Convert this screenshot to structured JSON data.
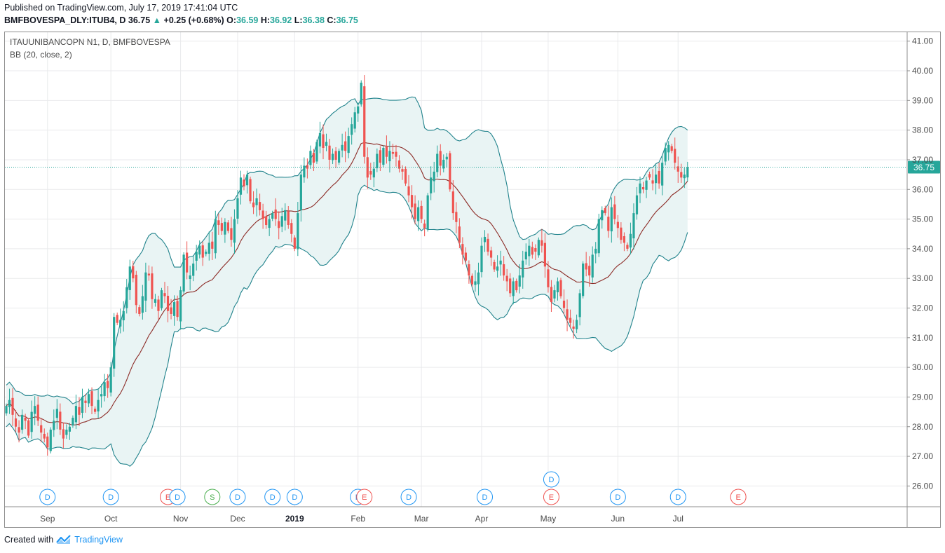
{
  "header": {
    "published": "Published on TradingView.com, July 17, 2019 17:41:04 UTC",
    "symbol": "BMFBOVESPA_DLY:ITUB4, D",
    "last": "36.75",
    "change": "+0.25 (+0.68%)",
    "o_label": "O:",
    "o": "36.59",
    "h_label": "H:",
    "h": "36.92",
    "l_label": "L:",
    "l": "36.38",
    "c_label": "C:",
    "c": "36.75"
  },
  "legend": {
    "instrument": "ITAUUNIBANCOPN N1, D, BMFBOVESPA",
    "indicator": "BB (20, close, 2)"
  },
  "footer": {
    "created_with": "Created with",
    "brand": "TradingView"
  },
  "colors": {
    "up": "#26a69a",
    "down": "#ef5350",
    "band": "#21838c",
    "basis": "#8c2b26",
    "fill": "#e9f4f4",
    "grid": "#e9eaec",
    "price_line": "#26a69a"
  },
  "chart_data": {
    "type": "candlestick",
    "y_ticks": [
      "41.00",
      "40.00",
      "39.00",
      "38.00",
      "37.00",
      "36.00",
      "35.00",
      "34.00",
      "33.00",
      "32.00",
      "31.00",
      "30.00",
      "29.00",
      "28.00",
      "27.00",
      "26.00"
    ],
    "ylim": [
      25.3,
      41.3
    ],
    "x_labels": [
      {
        "label": "Sep",
        "bar": 13
      },
      {
        "label": "Oct",
        "bar": 33
      },
      {
        "label": "Nov",
        "bar": 55
      },
      {
        "label": "Dec",
        "bar": 73
      },
      {
        "label": "2019",
        "bar": 91
      },
      {
        "label": "Feb",
        "bar": 111
      },
      {
        "label": "Mar",
        "bar": 131
      },
      {
        "label": "Apr",
        "bar": 150
      },
      {
        "label": "May",
        "bar": 171
      },
      {
        "label": "Jun",
        "bar": 193
      },
      {
        "label": "Jul",
        "bar": 212
      }
    ],
    "last_price": "36.75",
    "last_value": 36.75,
    "events": [
      {
        "t": "D",
        "bar": 13,
        "row": 0
      },
      {
        "t": "D",
        "bar": 33,
        "row": 0
      },
      {
        "t": "E",
        "bar": 51,
        "row": 0
      },
      {
        "t": "D",
        "bar": 54,
        "row": 0
      },
      {
        "t": "S",
        "bar": 65,
        "row": 0
      },
      {
        "t": "D",
        "bar": 73,
        "row": 0
      },
      {
        "t": "D",
        "bar": 84,
        "row": 0
      },
      {
        "t": "D",
        "bar": 91,
        "row": 0
      },
      {
        "t": "D",
        "bar": 111,
        "row": 0
      },
      {
        "t": "E",
        "bar": 113,
        "row": 0
      },
      {
        "t": "D",
        "bar": 127,
        "row": 0
      },
      {
        "t": "D",
        "bar": 151,
        "row": 0
      },
      {
        "t": "E",
        "bar": 172,
        "row": 0
      },
      {
        "t": "D",
        "bar": 172,
        "row": 1
      },
      {
        "t": "D",
        "bar": 193,
        "row": 0
      },
      {
        "t": "D",
        "bar": 212,
        "row": 0
      },
      {
        "t": "E",
        "bar": 231,
        "row": 0
      }
    ],
    "closes": [
      28.7,
      28.9,
      28.4,
      28.0,
      27.8,
      28.4,
      28.2,
      27.7,
      28.5,
      28.7,
      28.2,
      27.8,
      27.6,
      27.3,
      27.9,
      28.2,
      28.6,
      27.9,
      27.6,
      27.9,
      28.0,
      28.3,
      28.7,
      28.4,
      29.0,
      28.8,
      29.1,
      28.7,
      28.5,
      28.9,
      29.1,
      29.5,
      29.3,
      30.0,
      31.7,
      31.5,
      31.6,
      31.9,
      32.7,
      33.4,
      33.0,
      32.1,
      31.8,
      32.4,
      33.2,
      33.1,
      32.3,
      32.3,
      31.9,
      32.6,
      32.4,
      31.9,
      31.8,
      32.2,
      31.7,
      32.6,
      33.8,
      33.2,
      33.1,
      33.5,
      33.9,
      34.1,
      33.7,
      33.9,
      34.2,
      34.0,
      35.0,
      34.8,
      34.6,
      34.9,
      34.6,
      34.3,
      35.0,
      35.7,
      36.4,
      36.1,
      36.5,
      35.6,
      35.4,
      35.7,
      35.3,
      35.0,
      34.8,
      35.0,
      35.2,
      35.0,
      34.7,
      35.1,
      35.3,
      34.8,
      34.5,
      34.0,
      35.2,
      36.5,
      36.8,
      36.7,
      37.3,
      36.9,
      37.6,
      37.9,
      37.4,
      37.6,
      37.0,
      37.2,
      37.0,
      37.3,
      37.5,
      37.3,
      37.8,
      38.2,
      38.6,
      38.8,
      39.6,
      37.1,
      36.4,
      36.5,
      36.7,
      37.2,
      36.9,
      37.4,
      37.1,
      37.3,
      37.2,
      37.1,
      36.7,
      36.6,
      36.2,
      35.8,
      35.4,
      35.0,
      35.4,
      35.0,
      34.7,
      35.8,
      36.4,
      36.6,
      37.2,
      36.8,
      37.0,
      37.1,
      36.0,
      35.2,
      34.9,
      34.2,
      33.8,
      33.6,
      33.1,
      32.8,
      32.9,
      33.2,
      34.1,
      34.4,
      33.9,
      33.7,
      33.3,
      33.4,
      33.6,
      33.1,
      32.9,
      32.5,
      32.9,
      32.6,
      33.1,
      33.6,
      33.9,
      34.1,
      33.8,
      33.9,
      34.3,
      34.1,
      33.4,
      32.7,
      32.2,
      32.6,
      32.9,
      32.4,
      32.0,
      31.6,
      31.5,
      31.3,
      31.6,
      32.5,
      33.5,
      33.3,
      33.1,
      33.8,
      34.0,
      35.0,
      35.3,
      35.2,
      34.6,
      35.4,
      35.0,
      34.7,
      34.3,
      34.2,
      34.0,
      34.5,
      35.2,
      35.8,
      36.2,
      36.0,
      36.3,
      36.4,
      36.2,
      36.5,
      36.2,
      36.9,
      37.4,
      37.5,
      37.3,
      36.9,
      36.6,
      36.4,
      36.5,
      36.75
    ]
  }
}
